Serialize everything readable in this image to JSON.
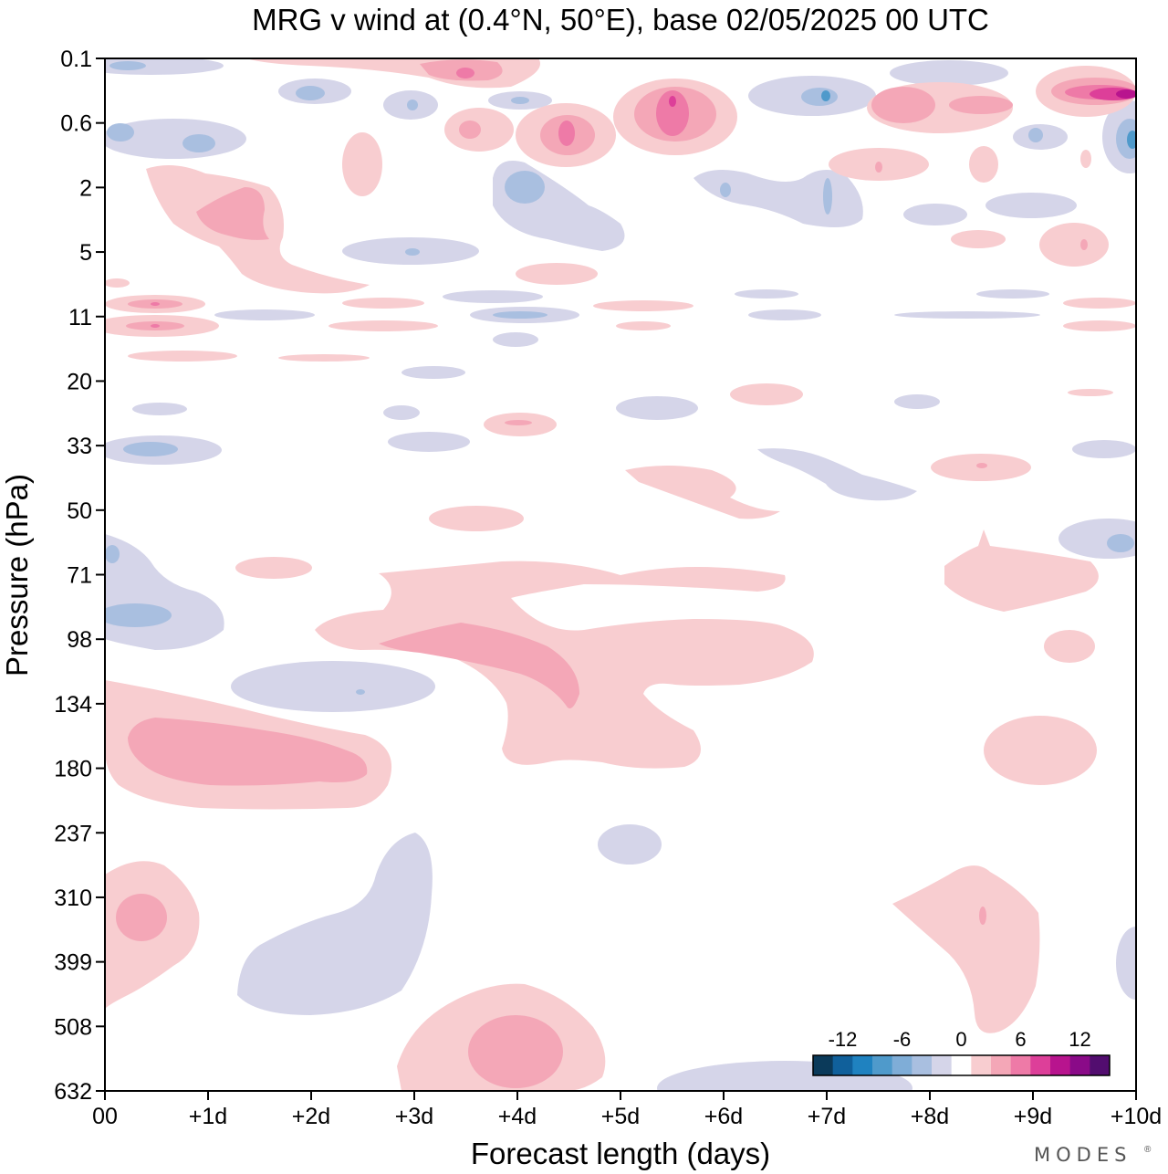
{
  "chart_data": {
    "type": "heatmap",
    "title": "MRG v wind at (0.4°N, 50°E),  base 02/05/2025  00 UTC",
    "xlabel": "Forecast length (days)",
    "ylabel": "Pressure (hPa)",
    "x_tick_labels": [
      "00",
      "+1d",
      "+2d",
      "+3d",
      "+4d",
      "+5d",
      "+6d",
      "+7d",
      "+8d",
      "+9d",
      "+10d"
    ],
    "x_range_days": [
      0,
      10
    ],
    "y_tick_labels": [
      "0.1",
      "0.6",
      "2",
      "5",
      "11",
      "20",
      "33",
      "50",
      "71",
      "98",
      "134",
      "180",
      "237",
      "310",
      "399",
      "508",
      "632"
    ],
    "y_range_hpa": [
      0.1,
      632
    ],
    "y_order": "pressure increases downward",
    "grid": false,
    "legend": "bottom-right colorbar",
    "colorbar": {
      "tick_labels": [
        "-12",
        "-6",
        "0",
        "6",
        "12"
      ],
      "levels": [
        -14,
        -12,
        -10,
        -8,
        -6,
        -4,
        -2,
        2,
        4,
        6,
        8,
        10,
        12,
        14
      ],
      "colors": [
        "#0b3a5a",
        "#10609b",
        "#1f82c0",
        "#4f9acb",
        "#7fadd7",
        "#a9bfe0",
        "#d5d5e9",
        "#ffffff",
        "#f8cdd0",
        "#f4a7b7",
        "#ee7aa7",
        "#dd3f99",
        "#b8148e",
        "#8a0a88",
        "#520d6f"
      ]
    },
    "features": [
      {
        "sign": "positive",
        "level": 2,
        "label": "strong positive core",
        "day": 9.8,
        "pressure_hpa": 0.35
      },
      {
        "sign": "positive",
        "level": 1,
        "label": "positive core",
        "day": 5.5,
        "pressure_hpa": 0.5
      },
      {
        "sign": "positive",
        "level": 1,
        "label": "positive core",
        "day": 4.5,
        "pressure_hpa": 0.7
      },
      {
        "sign": "positive",
        "level": 1,
        "label": "positive core",
        "day": 3.5,
        "pressure_hpa": 0.13
      },
      {
        "sign": "positive",
        "level": 1,
        "label": "positive band",
        "day": 1.3,
        "pressure_hpa": 3.2
      },
      {
        "sign": "positive",
        "level": 1,
        "label": "positive band",
        "day": 4.0,
        "pressure_hpa": 110
      },
      {
        "sign": "positive",
        "level": 1,
        "label": "positive band",
        "day": 1.3,
        "pressure_hpa": 170
      },
      {
        "sign": "positive",
        "level": 1,
        "label": "positive core",
        "day": 0.4,
        "pressure_hpa": 340
      },
      {
        "sign": "positive",
        "level": 1,
        "label": "positive core",
        "day": 3.9,
        "pressure_hpa": 560
      },
      {
        "sign": "negative",
        "level": -1,
        "label": "negative core",
        "day": 10.0,
        "pressure_hpa": 0.7
      },
      {
        "sign": "negative",
        "level": -1,
        "label": "negative core",
        "day": 0.5,
        "pressure_hpa": 105
      }
    ]
  },
  "brand": {
    "text": "MODES",
    "mark": "®"
  }
}
